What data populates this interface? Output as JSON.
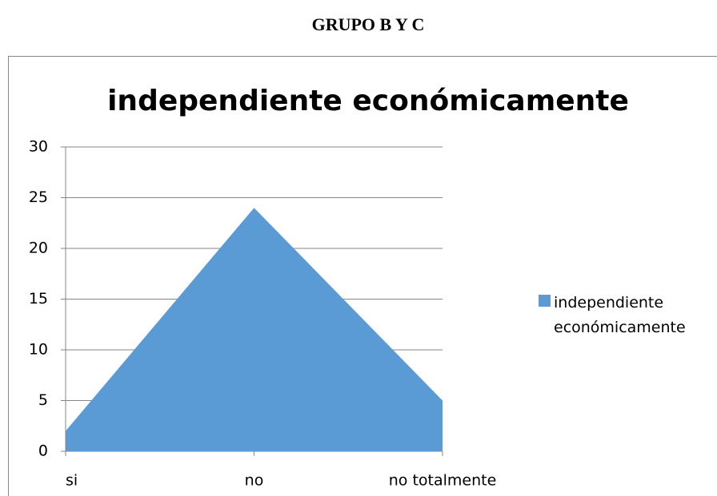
{
  "heading": "GRUPO B Y C",
  "chart_data": {
    "type": "area",
    "title": "independiente económicamente",
    "categories": [
      "si",
      "no",
      "no totalmente"
    ],
    "series": [
      {
        "name": "independiente económicamente",
        "color": "#5b9bd5",
        "values": [
          2,
          24,
          5
        ]
      }
    ],
    "ylim": [
      0,
      30
    ],
    "yticks": [
      0,
      5,
      10,
      15,
      20,
      25,
      30
    ],
    "grid": true,
    "legend": "right"
  }
}
